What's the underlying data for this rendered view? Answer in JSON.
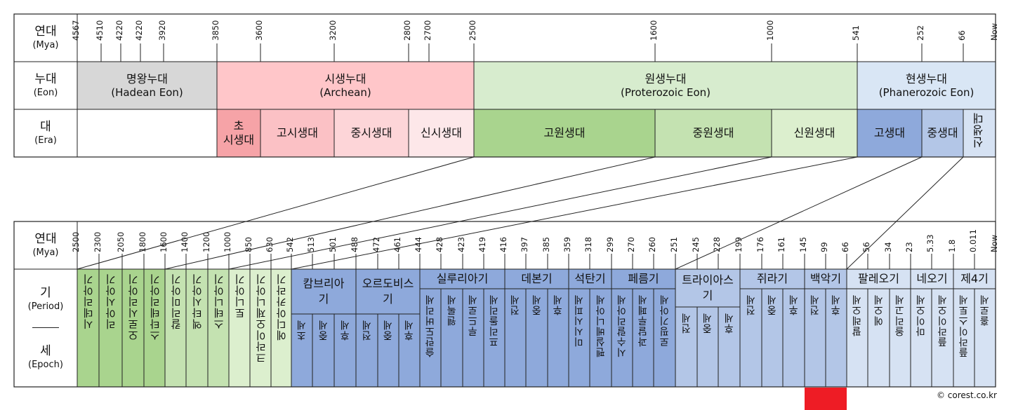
{
  "labels": {
    "age_k": "연대",
    "age_e": "(Mya)",
    "eon_k": "누대",
    "eon_e": "(Eon)",
    "era_k": "대",
    "era_e": "(Era)",
    "age2_k": "연대",
    "age2_e": "(Mya)",
    "period_k": "기",
    "period_e": "(Period)",
    "epoch_k": "세",
    "epoch_e": "(Epoch)"
  },
  "top_ticks": [
    "4567",
    "4510",
    "4220",
    "4220",
    "3920",
    "3850",
    "3600",
    "3200",
    "2800",
    "2700",
    "2500",
    "1600",
    "1000",
    "541",
    "252",
    "66",
    "Now"
  ],
  "eons": [
    {
      "k": "명왕누대",
      "e": "(Hadean Eon)",
      "color": "#d7d7d7"
    },
    {
      "k": "시생누대",
      "e": "(Archean)",
      "color": "#ffc6c9"
    },
    {
      "k": "원생누대",
      "e": "(Proterozoic Eon)",
      "color": "#d7ecce"
    },
    {
      "k": "현생누대",
      "e": "(Phanerozoic Eon)",
      "color": "#d9e6f5"
    }
  ],
  "eras": [
    {
      "label": "초",
      "label2": "시생대",
      "color": "#f6a3a7"
    },
    {
      "label": "고시생대",
      "color": "#fbc1c5"
    },
    {
      "label": "중시생대",
      "color": "#fdd5d8"
    },
    {
      "label": "신시생대",
      "color": "#fde7e9"
    },
    {
      "label": "고원생대",
      "color": "#a9d48e"
    },
    {
      "label": "중원생대",
      "color": "#c4e2b1"
    },
    {
      "label": "신원생대",
      "color": "#dcefce"
    },
    {
      "label": "고생대",
      "color": "#8ea9db"
    },
    {
      "label": "중생대",
      "color": "#b3c6e7"
    },
    {
      "label": "신생대",
      "color": "#d6e2f3"
    }
  ],
  "bottom_ticks": [
    "2500",
    "2300",
    "2050",
    "1800",
    "1600",
    "1400",
    "1200",
    "1000",
    "850",
    "630",
    "542",
    "513",
    "501",
    "488",
    "472",
    "461",
    "444",
    "428",
    "423",
    "419",
    "416",
    "397",
    "385",
    "359",
    "318",
    "299",
    "270",
    "260",
    "251",
    "245",
    "228",
    "199",
    "176",
    "161",
    "145",
    "99",
    "66",
    "56",
    "34",
    "23",
    "5.33",
    "1.8",
    "0.011",
    "Now"
  ],
  "periods_vertical": [
    "시데리아기",
    "리아시아기",
    "오로시리아기",
    "스타테리아기",
    "칼리미아기",
    "엑타시아기",
    "스테니아기",
    "토니아기",
    "크라이오제니아기",
    "에디아카라기"
  ],
  "periods": [
    "캄브리아기",
    "오르도비스기",
    "실루리아기",
    "데본기",
    "석탄기",
    "페름기",
    "트라이아스기",
    "쥐라기",
    "백악기",
    "팔레오기",
    "네오기",
    "제4기"
  ],
  "epochs": {
    "cambrian": [
      "초세",
      "중세",
      "후세"
    ],
    "ordovician": [
      "전세",
      "중세",
      "후세"
    ],
    "silurian": [
      "슬란도버리세",
      "웬록세",
      "루드로세",
      "프리돌리세"
    ],
    "devonian": [
      "전세",
      "중세",
      "후세"
    ],
    "carboniferous": [
      "미시시피세",
      "펜실베니아세"
    ],
    "permian": [
      "시수랄리아세",
      "과달루페세",
      "로핑기아세"
    ],
    "triassic": [
      "전세",
      "중세",
      "후세"
    ],
    "jurassic": [
      "전세",
      "중세",
      "후세"
    ],
    "cretaceous": [
      "전세",
      "후세"
    ],
    "paleogene": [
      "팔레오세",
      "에오세",
      "올리고세"
    ],
    "neogene": [
      "마이오세",
      "플라이오세"
    ],
    "quaternary": [
      "플라이스토세",
      "홀로세"
    ]
  },
  "copyright": "© corest.co.kr",
  "colors": {
    "border": "#1a1a1a",
    "paleo_period": "#8ea9db",
    "meso_period": "#b3c6e7",
    "ceno_period": "#d6e2f3",
    "prot_dark": "#a9d48e",
    "prot_mid": "#c4e2b1",
    "prot_light": "#dcefce"
  }
}
